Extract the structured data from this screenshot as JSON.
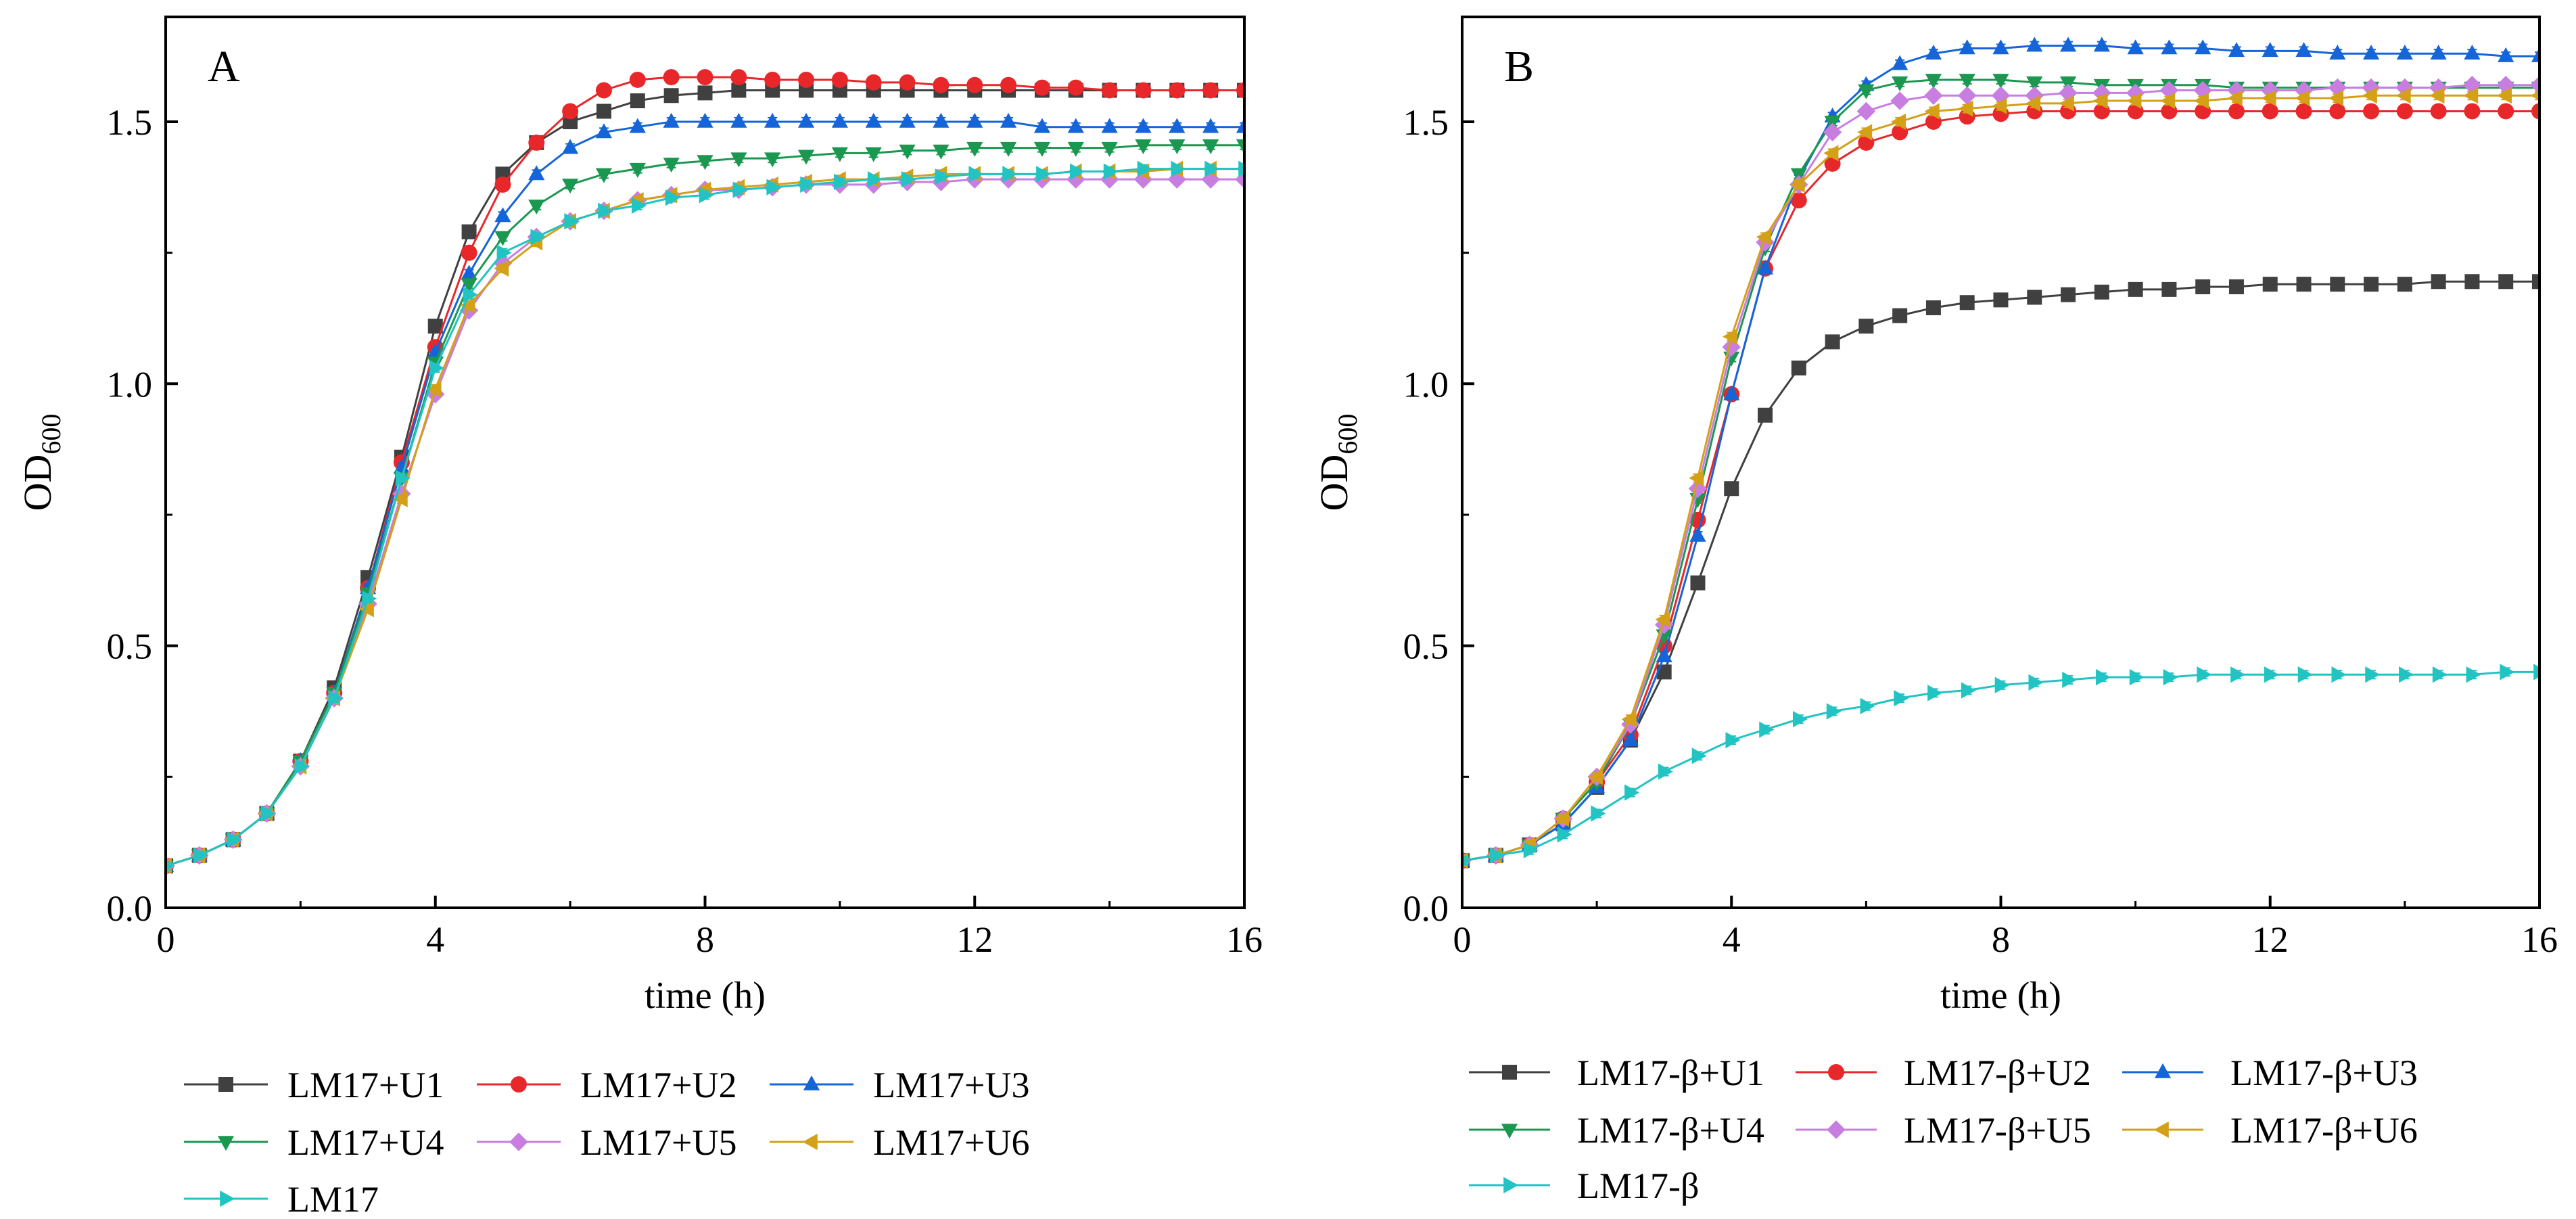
{
  "chart_data": [
    {
      "type": "line",
      "panel_label": "A",
      "xlabel": "time (h)",
      "ylabel_main": "OD",
      "ylabel_sub": "600",
      "xlim": [
        0,
        16
      ],
      "ylim": [
        0,
        1.7
      ],
      "xticks": [
        0,
        4,
        8,
        12,
        16
      ],
      "yticks": [
        0.0,
        0.5,
        1.0,
        1.5
      ],
      "ytick_labels": [
        "0.0",
        "0.5",
        "1.0",
        "1.5"
      ],
      "x": [
        0,
        0.5,
        1,
        1.5,
        2,
        2.5,
        3,
        3.5,
        4,
        4.5,
        5,
        5.5,
        6,
        6.5,
        7,
        7.5,
        8,
        8.5,
        9,
        9.5,
        10,
        10.5,
        11,
        11.5,
        12,
        12.5,
        13,
        13.5,
        14,
        14.5,
        15,
        15.5,
        16
      ],
      "series": [
        {
          "name": "LM17+U1",
          "color": "#404040",
          "marker": "square",
          "values": [
            0.08,
            0.1,
            0.13,
            0.18,
            0.28,
            0.42,
            0.63,
            0.86,
            1.11,
            1.29,
            1.4,
            1.46,
            1.5,
            1.52,
            1.54,
            1.55,
            1.555,
            1.56,
            1.56,
            1.56,
            1.56,
            1.56,
            1.56,
            1.56,
            1.56,
            1.56,
            1.56,
            1.56,
            1.56,
            1.56,
            1.56,
            1.56,
            1.56
          ]
        },
        {
          "name": "LM17+U2",
          "color": "#e8272a",
          "marker": "circle",
          "values": [
            0.08,
            0.1,
            0.13,
            0.18,
            0.28,
            0.41,
            0.61,
            0.85,
            1.07,
            1.25,
            1.38,
            1.46,
            1.52,
            1.56,
            1.58,
            1.585,
            1.585,
            1.585,
            1.58,
            1.58,
            1.58,
            1.575,
            1.575,
            1.57,
            1.57,
            1.57,
            1.565,
            1.565,
            1.56,
            1.56,
            1.56,
            1.56,
            1.56
          ]
        },
        {
          "name": "LM17+U3",
          "color": "#1565d8",
          "marker": "triangle-up",
          "values": [
            0.08,
            0.1,
            0.13,
            0.18,
            0.28,
            0.41,
            0.61,
            0.84,
            1.06,
            1.21,
            1.32,
            1.4,
            1.45,
            1.48,
            1.49,
            1.5,
            1.5,
            1.5,
            1.5,
            1.5,
            1.5,
            1.5,
            1.5,
            1.5,
            1.5,
            1.5,
            1.49,
            1.49,
            1.49,
            1.49,
            1.49,
            1.49,
            1.49
          ]
        },
        {
          "name": "LM17+U4",
          "color": "#1a9850",
          "marker": "triangle-down",
          "values": [
            0.08,
            0.1,
            0.13,
            0.18,
            0.28,
            0.41,
            0.6,
            0.82,
            1.04,
            1.19,
            1.28,
            1.34,
            1.38,
            1.4,
            1.41,
            1.42,
            1.425,
            1.43,
            1.43,
            1.435,
            1.44,
            1.44,
            1.445,
            1.445,
            1.45,
            1.45,
            1.45,
            1.45,
            1.45,
            1.455,
            1.455,
            1.455,
            1.455
          ]
        },
        {
          "name": "LM17+U5",
          "color": "#c77ee0",
          "marker": "diamond",
          "values": [
            0.08,
            0.1,
            0.13,
            0.18,
            0.27,
            0.4,
            0.58,
            0.79,
            0.98,
            1.14,
            1.23,
            1.28,
            1.31,
            1.33,
            1.35,
            1.36,
            1.37,
            1.37,
            1.375,
            1.38,
            1.38,
            1.38,
            1.385,
            1.385,
            1.39,
            1.39,
            1.39,
            1.39,
            1.39,
            1.39,
            1.39,
            1.39,
            1.39
          ]
        },
        {
          "name": "LM17+U6",
          "color": "#d4a017",
          "marker": "triangle-left",
          "values": [
            0.08,
            0.1,
            0.13,
            0.18,
            0.27,
            0.4,
            0.57,
            0.78,
            0.99,
            1.15,
            1.22,
            1.27,
            1.31,
            1.33,
            1.35,
            1.36,
            1.37,
            1.375,
            1.38,
            1.385,
            1.39,
            1.39,
            1.395,
            1.4,
            1.4,
            1.4,
            1.4,
            1.405,
            1.405,
            1.405,
            1.41,
            1.41,
            1.41
          ]
        },
        {
          "name": "LM17",
          "color": "#22c3c3",
          "marker": "triangle-right",
          "values": [
            0.08,
            0.1,
            0.13,
            0.18,
            0.27,
            0.4,
            0.59,
            0.82,
            1.03,
            1.17,
            1.25,
            1.28,
            1.31,
            1.33,
            1.34,
            1.355,
            1.36,
            1.37,
            1.375,
            1.38,
            1.385,
            1.39,
            1.39,
            1.395,
            1.4,
            1.4,
            1.4,
            1.405,
            1.405,
            1.41,
            1.41,
            1.41,
            1.41
          ]
        }
      ]
    },
    {
      "type": "line",
      "panel_label": "B",
      "xlabel": "time (h)",
      "ylabel_main": "OD",
      "ylabel_sub": "600",
      "xlim": [
        0,
        16
      ],
      "ylim": [
        0,
        1.7
      ],
      "xticks": [
        0,
        4,
        8,
        12,
        16
      ],
      "yticks": [
        0.0,
        0.5,
        1.0,
        1.5
      ],
      "ytick_labels": [
        "0.0",
        "0.5",
        "1.0",
        "1.5"
      ],
      "x": [
        0,
        0.5,
        1,
        1.5,
        2,
        2.5,
        3,
        3.5,
        4,
        4.5,
        5,
        5.5,
        6,
        6.5,
        7,
        7.5,
        8,
        8.5,
        9,
        9.5,
        10,
        10.5,
        11,
        11.5,
        12,
        12.5,
        13,
        13.5,
        14,
        14.5,
        15,
        15.5,
        16
      ],
      "series": [
        {
          "name": "LM17-β+U1",
          "color": "#404040",
          "marker": "square",
          "values": [
            0.09,
            0.1,
            0.12,
            0.16,
            0.23,
            0.32,
            0.45,
            0.62,
            0.8,
            0.94,
            1.03,
            1.08,
            1.11,
            1.13,
            1.145,
            1.155,
            1.16,
            1.165,
            1.17,
            1.175,
            1.18,
            1.18,
            1.185,
            1.185,
            1.19,
            1.19,
            1.19,
            1.19,
            1.19,
            1.195,
            1.195,
            1.195,
            1.195
          ]
        },
        {
          "name": "LM17-β+U2",
          "color": "#e8272a",
          "marker": "circle",
          "values": [
            0.09,
            0.1,
            0.12,
            0.17,
            0.24,
            0.33,
            0.5,
            0.74,
            0.98,
            1.22,
            1.35,
            1.42,
            1.46,
            1.48,
            1.5,
            1.51,
            1.515,
            1.52,
            1.52,
            1.52,
            1.52,
            1.52,
            1.52,
            1.52,
            1.52,
            1.52,
            1.52,
            1.52,
            1.52,
            1.52,
            1.52,
            1.52,
            1.52
          ]
        },
        {
          "name": "LM17-β+U3",
          "color": "#1565d8",
          "marker": "triangle-up",
          "values": [
            0.09,
            0.1,
            0.12,
            0.16,
            0.23,
            0.32,
            0.48,
            0.71,
            0.98,
            1.22,
            1.39,
            1.51,
            1.57,
            1.61,
            1.63,
            1.64,
            1.64,
            1.645,
            1.645,
            1.645,
            1.64,
            1.64,
            1.64,
            1.635,
            1.635,
            1.635,
            1.63,
            1.63,
            1.63,
            1.63,
            1.63,
            1.625,
            1.625
          ]
        },
        {
          "name": "LM17-β+U4",
          "color": "#1a9850",
          "marker": "triangle-down",
          "values": [
            0.09,
            0.1,
            0.12,
            0.17,
            0.24,
            0.35,
            0.52,
            0.78,
            1.05,
            1.26,
            1.4,
            1.5,
            1.56,
            1.575,
            1.58,
            1.58,
            1.58,
            1.575,
            1.575,
            1.57,
            1.57,
            1.57,
            1.57,
            1.565,
            1.565,
            1.565,
            1.565,
            1.565,
            1.565,
            1.565,
            1.565,
            1.565,
            1.565
          ]
        },
        {
          "name": "LM17-β+U5",
          "color": "#c77ee0",
          "marker": "diamond",
          "values": [
            0.09,
            0.1,
            0.12,
            0.17,
            0.25,
            0.35,
            0.54,
            0.8,
            1.07,
            1.27,
            1.38,
            1.48,
            1.52,
            1.54,
            1.55,
            1.55,
            1.55,
            1.55,
            1.555,
            1.555,
            1.555,
            1.56,
            1.56,
            1.56,
            1.56,
            1.56,
            1.565,
            1.565,
            1.565,
            1.565,
            1.57,
            1.57,
            1.57
          ]
        },
        {
          "name": "LM17-β+U6",
          "color": "#d4a017",
          "marker": "triangle-left",
          "values": [
            0.09,
            0.1,
            0.12,
            0.17,
            0.25,
            0.36,
            0.55,
            0.82,
            1.09,
            1.28,
            1.38,
            1.44,
            1.48,
            1.5,
            1.52,
            1.525,
            1.53,
            1.535,
            1.535,
            1.54,
            1.54,
            1.54,
            1.54,
            1.545,
            1.545,
            1.545,
            1.545,
            1.55,
            1.55,
            1.55,
            1.55,
            1.55,
            1.55
          ]
        },
        {
          "name": "LM17-β",
          "color": "#22c3c3",
          "marker": "triangle-right",
          "values": [
            0.09,
            0.1,
            0.11,
            0.14,
            0.18,
            0.22,
            0.26,
            0.29,
            0.32,
            0.34,
            0.36,
            0.375,
            0.385,
            0.4,
            0.41,
            0.415,
            0.425,
            0.43,
            0.435,
            0.44,
            0.44,
            0.44,
            0.445,
            0.445,
            0.445,
            0.445,
            0.445,
            0.445,
            0.445,
            0.445,
            0.445,
            0.45,
            0.45
          ]
        }
      ]
    }
  ]
}
